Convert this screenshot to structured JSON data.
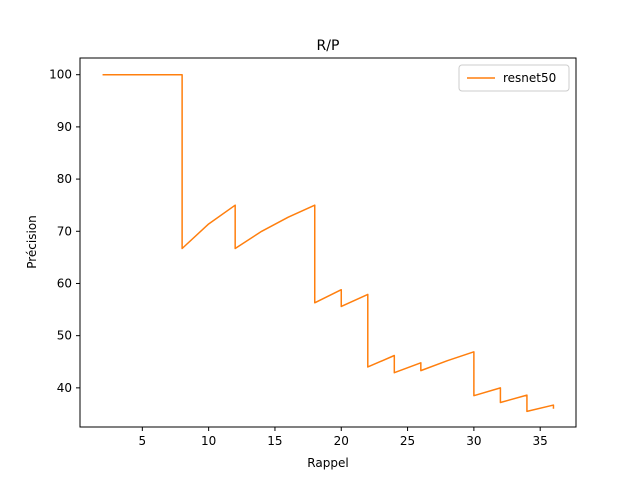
{
  "chart_data": {
    "type": "line",
    "title": "R/P",
    "xlabel": "Rappel",
    "ylabel": "Précision",
    "xlim": [
      0.3,
      37.7
    ],
    "ylim": [
      32.5,
      103.2
    ],
    "xticks": [
      5,
      10,
      15,
      20,
      25,
      30,
      35
    ],
    "yticks": [
      40,
      50,
      60,
      70,
      80,
      90,
      100
    ],
    "grid": false,
    "legend_position": "top-right",
    "series": [
      {
        "name": "resnet50",
        "color": "#ff7f0e",
        "x": [
          2,
          4,
          6,
          8,
          8,
          10,
          12,
          12,
          14,
          16,
          18,
          18,
          20,
          20,
          22,
          22,
          24,
          24,
          26,
          26,
          28,
          30,
          30,
          32,
          32,
          34,
          34,
          36,
          36
        ],
        "y": [
          100,
          100,
          100,
          100,
          66.7,
          71.4,
          75.0,
          66.7,
          70.0,
          72.7,
          75.0,
          56.3,
          58.8,
          55.6,
          57.9,
          44.0,
          46.2,
          42.9,
          44.8,
          43.3,
          45.2,
          46.9,
          38.5,
          40.0,
          37.2,
          38.6,
          35.5,
          36.7,
          36.0
        ]
      }
    ]
  }
}
